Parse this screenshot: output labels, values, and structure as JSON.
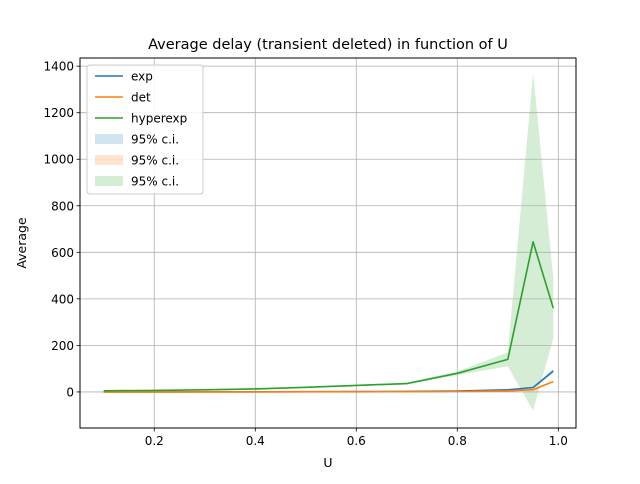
{
  "chart_data": {
    "type": "line",
    "title": "Average delay (transient deleted) in function of U",
    "xlabel": "U",
    "ylabel": "Average",
    "xlim": [
      0.053,
      1.035
    ],
    "ylim": [
      -155,
      1435
    ],
    "xticks": [
      0.2,
      0.4,
      0.6,
      0.8,
      1.0
    ],
    "xtick_labels": [
      "0.2",
      "0.4",
      "0.6",
      "0.8",
      "1.0"
    ],
    "yticks": [
      0,
      200,
      400,
      600,
      800,
      1000,
      1200,
      1400
    ],
    "ytick_labels": [
      "0",
      "200",
      "400",
      "600",
      "800",
      "1000",
      "1200",
      "1400"
    ],
    "grid": true,
    "legend_position": "top-left",
    "x": [
      0.1,
      0.2,
      0.3,
      0.4,
      0.5,
      0.6,
      0.7,
      0.8,
      0.9,
      0.95,
      0.99
    ],
    "series": [
      {
        "name": "exp",
        "color": "#1f77b4",
        "values": [
          0.1,
          0.3,
          0.5,
          0.7,
          1.0,
          1.5,
          2.3,
          4.0,
          9.0,
          19.0,
          90.0
        ],
        "ci_lower": [
          0.1,
          0.3,
          0.5,
          0.7,
          1.0,
          1.5,
          2.2,
          3.8,
          8.5,
          17.0,
          80.0
        ],
        "ci_upper": [
          0.1,
          0.3,
          0.5,
          0.7,
          1.0,
          1.5,
          2.4,
          4.2,
          9.5,
          21.0,
          100.0
        ]
      },
      {
        "name": "det",
        "color": "#ff7f0e",
        "values": [
          0.06,
          0.13,
          0.21,
          0.33,
          0.5,
          0.75,
          1.2,
          2.0,
          4.5,
          9.5,
          45.0
        ],
        "ci_lower": [
          0.06,
          0.13,
          0.21,
          0.33,
          0.5,
          0.75,
          1.2,
          2.0,
          4.4,
          9.0,
          42.0
        ],
        "ci_upper": [
          0.06,
          0.13,
          0.21,
          0.33,
          0.5,
          0.75,
          1.2,
          2.0,
          4.6,
          10.0,
          48.0
        ]
      },
      {
        "name": "hyperexp",
        "color": "#2ca02c",
        "values": [
          5.0,
          6.5,
          9.0,
          13.0,
          20.0,
          28.0,
          36.0,
          80.0,
          140.0,
          645.0,
          360.0
        ],
        "ci_lower": [
          4.5,
          6.0,
          8.5,
          12.0,
          18.0,
          25.0,
          32.0,
          72.0,
          110.0,
          -80.0,
          230.0
        ],
        "ci_upper": [
          5.5,
          7.0,
          9.5,
          14.0,
          22.0,
          31.0,
          40.0,
          88.0,
          170.0,
          1370.0,
          490.0
        ]
      }
    ],
    "ci_label": "95% c.i."
  }
}
